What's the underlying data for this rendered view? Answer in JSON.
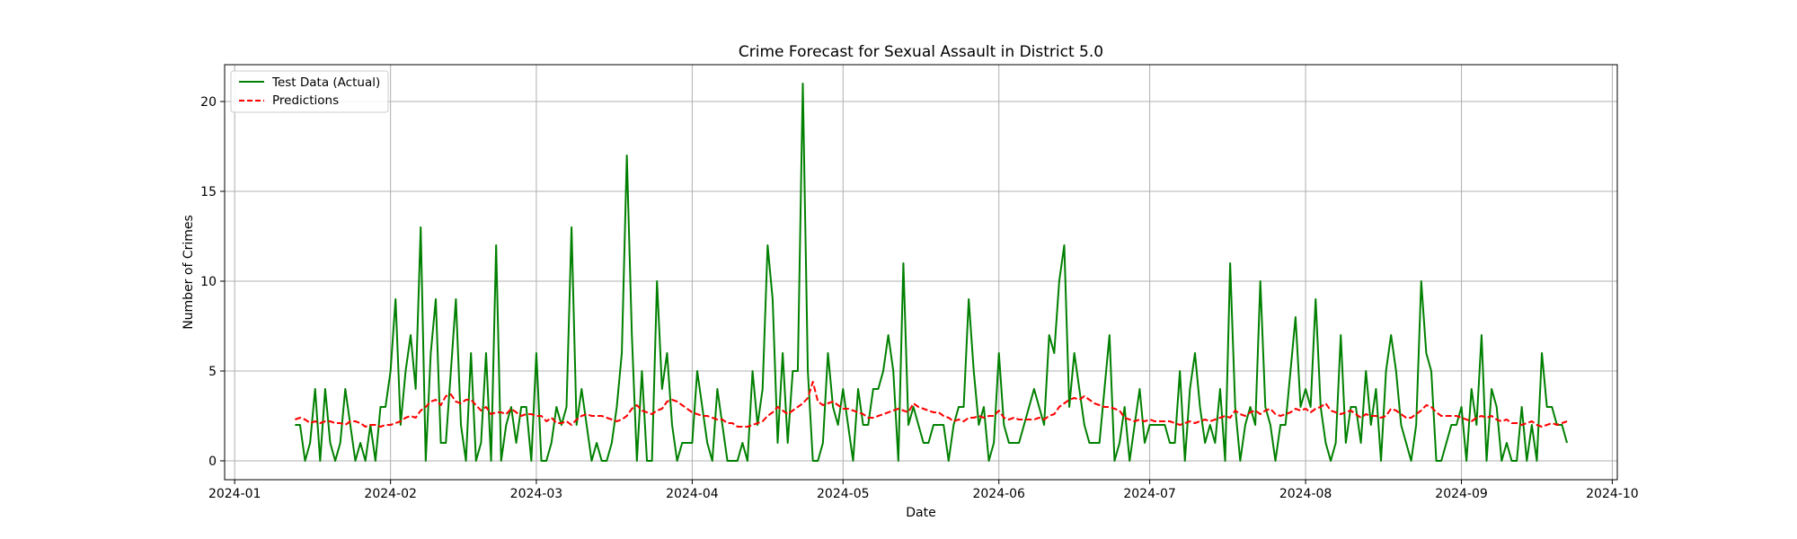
{
  "chart_data": {
    "type": "line",
    "title": "Crime Forecast for Sexual Assault in District 5.0",
    "xlabel": "Date",
    "ylabel": "Number of Crimes",
    "xlim": [
      "2023-12-30",
      "2024-10-02"
    ],
    "ylim": [
      -1.05,
      22.05
    ],
    "grid": true,
    "legend_position": "top-left",
    "x_ticks": [
      {
        "date": "2024-01-01",
        "label": "2024-01"
      },
      {
        "date": "2024-02-01",
        "label": "2024-02"
      },
      {
        "date": "2024-03-01",
        "label": "2024-03"
      },
      {
        "date": "2024-04-01",
        "label": "2024-04"
      },
      {
        "date": "2024-05-01",
        "label": "2024-05"
      },
      {
        "date": "2024-06-01",
        "label": "2024-06"
      },
      {
        "date": "2024-07-01",
        "label": "2024-07"
      },
      {
        "date": "2024-08-01",
        "label": "2024-08"
      },
      {
        "date": "2024-09-01",
        "label": "2024-09"
      },
      {
        "date": "2024-10-01",
        "label": "2024-10"
      }
    ],
    "y_ticks": [
      {
        "value": 0,
        "label": "0"
      },
      {
        "value": 5,
        "label": "5"
      },
      {
        "value": 10,
        "label": "10"
      },
      {
        "value": 15,
        "label": "15"
      },
      {
        "value": 20,
        "label": "20"
      }
    ],
    "start_date": "2024-01-13",
    "series": [
      {
        "name": "Test Data (Actual)",
        "color": "#008000",
        "style": "solid",
        "values": [
          2,
          2,
          0,
          1,
          4,
          0,
          4,
          1,
          0,
          1,
          4,
          2,
          0,
          1,
          0,
          2,
          0,
          3,
          3,
          5,
          9,
          2,
          5,
          7,
          4,
          13,
          0,
          6,
          9,
          1,
          1,
          5,
          9,
          2,
          0,
          6,
          0,
          1,
          6,
          0,
          12,
          0,
          2,
          3,
          1,
          3,
          3,
          0,
          6,
          0,
          0,
          1,
          3,
          2,
          3,
          13,
          2,
          4,
          2,
          0,
          1,
          0,
          0,
          1,
          3,
          6,
          17,
          7,
          0,
          5,
          0,
          0,
          10,
          4,
          6,
          2,
          0,
          1,
          1,
          1,
          5,
          3,
          1,
          0,
          4,
          2,
          0,
          0,
          0,
          1,
          0,
          5,
          2,
          4,
          12,
          9,
          1,
          6,
          1,
          5,
          5,
          21,
          5,
          0,
          0,
          1,
          6,
          3,
          2,
          4,
          2,
          0,
          4,
          2,
          2,
          4,
          4,
          5,
          7,
          5,
          0,
          11,
          2,
          3,
          2,
          1,
          1,
          2,
          2,
          2,
          0,
          2,
          3,
          3,
          9,
          5,
          2,
          3,
          0,
          1,
          6,
          2,
          1,
          1,
          1,
          2,
          3,
          4,
          3,
          2,
          7,
          6,
          10,
          12,
          3,
          6,
          4,
          2,
          1,
          1,
          1,
          4,
          7,
          0,
          1,
          3,
          0,
          2,
          4,
          1,
          2,
          2,
          2,
          2,
          1,
          1,
          5,
          0,
          4,
          6,
          3,
          1,
          2,
          1,
          4,
          0,
          11,
          3,
          0,
          2,
          3,
          2,
          10,
          3,
          2,
          0,
          2,
          2,
          5,
          8,
          3,
          4,
          3,
          9,
          3,
          1,
          0,
          1,
          7,
          1,
          3,
          3,
          1,
          5,
          2,
          4,
          0,
          5,
          7,
          5,
          2,
          1,
          0,
          2,
          10,
          6,
          5,
          0,
          0,
          1,
          2,
          2,
          3,
          0,
          4,
          2,
          7,
          0,
          4,
          3,
          0,
          1,
          0,
          0,
          3,
          0,
          2,
          0,
          6,
          3,
          3,
          2,
          2,
          1
        ]
      },
      {
        "name": "Predictions",
        "color": "#ff0000",
        "style": "dashed",
        "values": [
          2.3,
          2.4,
          2.3,
          2.1,
          2.2,
          2.1,
          2.2,
          2.2,
          2.1,
          2.1,
          2.0,
          2.2,
          2.2,
          2.1,
          1.9,
          2.0,
          2.0,
          1.9,
          2.0,
          2.0,
          2.1,
          2.2,
          2.4,
          2.5,
          2.4,
          2.8,
          3.0,
          3.3,
          3.4,
          3.1,
          3.6,
          3.7,
          3.3,
          3.2,
          3.4,
          3.4,
          3.1,
          2.8,
          3.0,
          2.6,
          2.7,
          2.7,
          2.6,
          2.9,
          2.7,
          2.5,
          2.6,
          2.6,
          2.5,
          2.5,
          2.2,
          2.4,
          2.1,
          2.1,
          2.2,
          2.0,
          2.3,
          2.5,
          2.6,
          2.5,
          2.5,
          2.5,
          2.4,
          2.3,
          2.2,
          2.3,
          2.5,
          2.9,
          3.1,
          2.8,
          2.7,
          2.6,
          2.8,
          2.9,
          3.3,
          3.4,
          3.3,
          3.1,
          2.9,
          2.7,
          2.6,
          2.5,
          2.5,
          2.4,
          2.3,
          2.3,
          2.1,
          2.1,
          1.9,
          1.9,
          1.9,
          2.0,
          2.1,
          2.2,
          2.5,
          2.7,
          3.0,
          2.8,
          2.6,
          2.8,
          3.0,
          3.2,
          3.5,
          4.4,
          3.3,
          3.1,
          3.2,
          3.3,
          3.1,
          2.9,
          2.9,
          2.8,
          2.7,
          2.6,
          2.4,
          2.4,
          2.5,
          2.6,
          2.7,
          2.8,
          2.9,
          2.8,
          2.7,
          3.2,
          3.0,
          2.9,
          2.8,
          2.7,
          2.7,
          2.5,
          2.4,
          2.2,
          2.3,
          2.2,
          2.4,
          2.4,
          2.5,
          2.4,
          2.5,
          2.5,
          2.8,
          2.4,
          2.3,
          2.4,
          2.3,
          2.3,
          2.3,
          2.3,
          2.4,
          2.3,
          2.5,
          2.6,
          3.0,
          3.2,
          3.4,
          3.5,
          3.4,
          3.6,
          3.4,
          3.2,
          3.1,
          3.0,
          3.0,
          2.9,
          2.8,
          2.4,
          2.3,
          2.2,
          2.3,
          2.2,
          2.3,
          2.2,
          2.2,
          2.2,
          2.2,
          2.1,
          2.0,
          2.1,
          2.2,
          2.1,
          2.2,
          2.3,
          2.2,
          2.3,
          2.4,
          2.5,
          2.4,
          2.8,
          2.6,
          2.5,
          2.7,
          2.8,
          2.6,
          2.8,
          2.9,
          2.6,
          2.5,
          2.6,
          2.7,
          2.9,
          2.8,
          2.9,
          2.7,
          2.9,
          3.0,
          3.2,
          2.8,
          2.7,
          2.6,
          2.7,
          2.8,
          2.6,
          2.4,
          2.6,
          2.5,
          2.5,
          2.4,
          2.5,
          2.9,
          2.8,
          2.6,
          2.4,
          2.4,
          2.6,
          2.8,
          3.1,
          3.0,
          2.7,
          2.5,
          2.5,
          2.5,
          2.5,
          2.4,
          2.3,
          2.2,
          2.4,
          2.5,
          2.4,
          2.5,
          2.3,
          2.2,
          2.3,
          2.1,
          2.1,
          2.0,
          2.1,
          2.2,
          2.0,
          1.9,
          2.0,
          2.1,
          2.0,
          2.1,
          2.2
        ]
      }
    ]
  }
}
